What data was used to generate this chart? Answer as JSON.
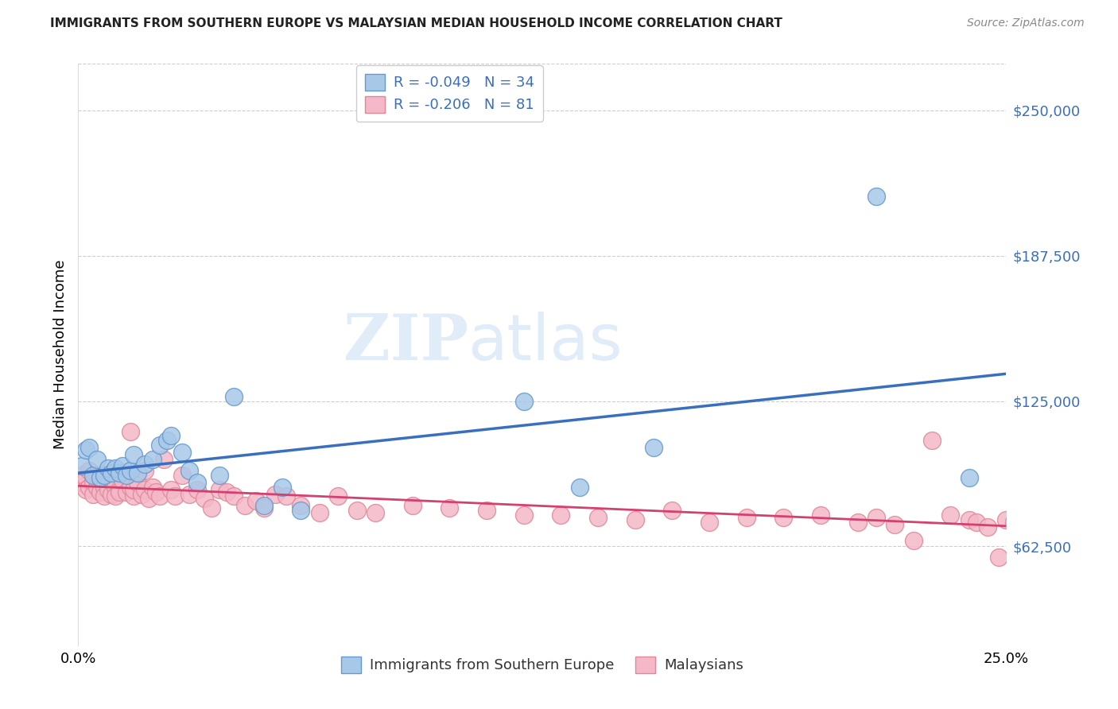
{
  "title": "IMMIGRANTS FROM SOUTHERN EUROPE VS MALAYSIAN MEDIAN HOUSEHOLD INCOME CORRELATION CHART",
  "source": "Source: ZipAtlas.com",
  "ylabel": "Median Household Income",
  "xlim": [
    0.0,
    0.25
  ],
  "ylim": [
    20000,
    270000
  ],
  "ytick_vals": [
    62500,
    125000,
    187500,
    250000
  ],
  "ytick_labels": [
    "$62,500",
    "$125,000",
    "$187,500",
    "$250,000"
  ],
  "legend_blue_label": "R = -0.049   N = 34",
  "legend_pink_label": "R = -0.206   N = 81",
  "blue_scatter_color": "#a8c8e8",
  "blue_scatter_edge": "#6699cc",
  "pink_scatter_color": "#f4b8c8",
  "pink_scatter_edge": "#e08898",
  "blue_line_color": "#3a6fbf",
  "pink_line_color": "#d44070",
  "legend_text_color": "#3a6fbf",
  "ytick_color": "#3a6fbf",
  "watermark_color": "#c8dff5",
  "background_color": "#ffffff",
  "grid_color": "#cccccc",
  "blue_scatter_x": [
    0.001,
    0.002,
    0.003,
    0.004,
    0.005,
    0.006,
    0.007,
    0.008,
    0.009,
    0.01,
    0.011,
    0.012,
    0.013,
    0.014,
    0.015,
    0.016,
    0.018,
    0.02,
    0.022,
    0.024,
    0.025,
    0.028,
    0.03,
    0.032,
    0.038,
    0.042,
    0.05,
    0.055,
    0.06,
    0.12,
    0.135,
    0.155,
    0.215,
    0.24
  ],
  "blue_scatter_y": [
    97000,
    104000,
    105000,
    93000,
    100000,
    92000,
    93000,
    96000,
    94000,
    96000,
    94000,
    97000,
    93000,
    95000,
    102000,
    94000,
    98000,
    100000,
    106000,
    108000,
    110000,
    103000,
    95000,
    90000,
    93000,
    127000,
    80000,
    88000,
    78000,
    125000,
    88000,
    105000,
    213000,
    92000
  ],
  "pink_scatter_x": [
    0.001,
    0.001,
    0.002,
    0.002,
    0.003,
    0.003,
    0.004,
    0.004,
    0.005,
    0.005,
    0.006,
    0.006,
    0.007,
    0.007,
    0.008,
    0.008,
    0.009,
    0.009,
    0.01,
    0.01,
    0.011,
    0.011,
    0.012,
    0.013,
    0.014,
    0.014,
    0.015,
    0.015,
    0.016,
    0.017,
    0.018,
    0.018,
    0.019,
    0.02,
    0.021,
    0.022,
    0.023,
    0.025,
    0.026,
    0.028,
    0.03,
    0.032,
    0.034,
    0.036,
    0.038,
    0.04,
    0.042,
    0.045,
    0.048,
    0.05,
    0.053,
    0.056,
    0.06,
    0.065,
    0.07,
    0.075,
    0.08,
    0.09,
    0.1,
    0.11,
    0.12,
    0.13,
    0.14,
    0.15,
    0.16,
    0.17,
    0.18,
    0.19,
    0.2,
    0.21,
    0.215,
    0.22,
    0.225,
    0.23,
    0.235,
    0.24,
    0.242,
    0.245,
    0.248,
    0.25,
    0.252
  ],
  "pink_scatter_y": [
    90000,
    93000,
    92000,
    87000,
    95000,
    88000,
    90000,
    85000,
    88000,
    93000,
    86000,
    92000,
    88000,
    84000,
    89000,
    87000,
    93000,
    85000,
    88000,
    84000,
    87000,
    86000,
    91000,
    86000,
    88000,
    112000,
    84000,
    87000,
    90000,
    85000,
    95000,
    87000,
    83000,
    88000,
    86000,
    84000,
    100000,
    87000,
    84000,
    93000,
    85000,
    87000,
    83000,
    79000,
    87000,
    86000,
    84000,
    80000,
    82000,
    79000,
    85000,
    84000,
    80000,
    77000,
    84000,
    78000,
    77000,
    80000,
    79000,
    78000,
    76000,
    76000,
    75000,
    74000,
    78000,
    73000,
    75000,
    75000,
    76000,
    73000,
    75000,
    72000,
    65000,
    108000,
    76000,
    74000,
    73000,
    71000,
    58000,
    74000,
    73000
  ]
}
